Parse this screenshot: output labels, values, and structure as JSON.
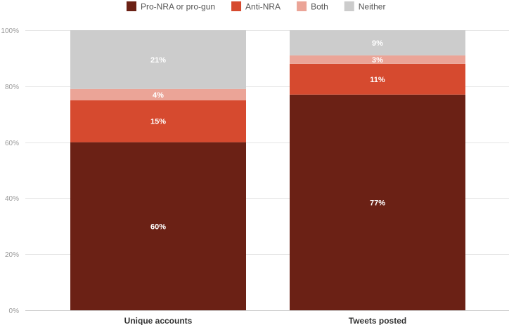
{
  "chart_data": {
    "type": "bar",
    "stacked": true,
    "categories": [
      "Unique accounts",
      "Tweets posted"
    ],
    "series": [
      {
        "name": "Pro-NRA or pro-gun",
        "color": "#6b2115",
        "values": [
          60,
          77
        ],
        "labels": [
          "60%",
          "77%"
        ]
      },
      {
        "name": "Anti-NRA",
        "color": "#d64a2f",
        "values": [
          15,
          11
        ],
        "labels": [
          "15%",
          "11%"
        ]
      },
      {
        "name": "Both",
        "color": "#eba497",
        "values": [
          4,
          3
        ],
        "labels": [
          "4%",
          "3%"
        ]
      },
      {
        "name": "Neither",
        "color": "#cccccc",
        "values": [
          21,
          9
        ],
        "labels": [
          "21%",
          "9%"
        ]
      }
    ],
    "ylim": [
      0,
      100
    ],
    "yticks": [
      {
        "value": 0,
        "label": "0%"
      },
      {
        "value": 20,
        "label": "20%"
      },
      {
        "value": 40,
        "label": "40%"
      },
      {
        "value": 60,
        "label": "60%"
      },
      {
        "value": 80,
        "label": "80%"
      },
      {
        "value": 100,
        "label": "100%"
      }
    ],
    "grid": true,
    "legend": "top"
  }
}
